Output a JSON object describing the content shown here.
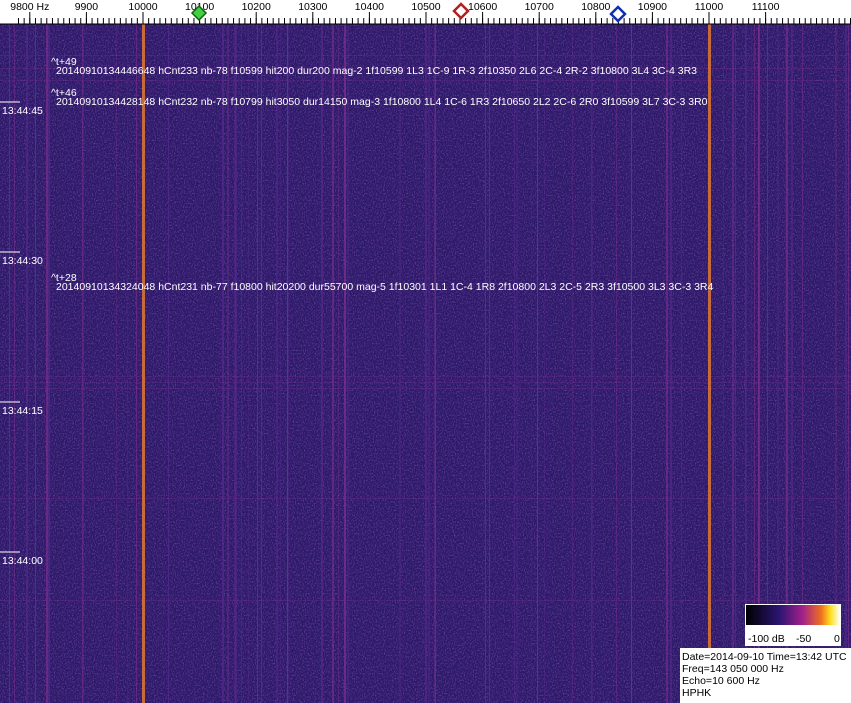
{
  "frequency_axis": {
    "ticks": [
      {
        "value": 9800,
        "label": "9800 Hz"
      },
      {
        "value": 9900,
        "label": "9900"
      },
      {
        "value": 10000,
        "label": "10000"
      },
      {
        "value": 10100,
        "label": "10100"
      },
      {
        "value": 10200,
        "label": "10200"
      },
      {
        "value": 10300,
        "label": "10300"
      },
      {
        "value": 10400,
        "label": "10400"
      },
      {
        "value": 10500,
        "label": "10500"
      },
      {
        "value": 10600,
        "label": "10600"
      },
      {
        "value": 10700,
        "label": "10700"
      },
      {
        "value": 10800,
        "label": "10800"
      },
      {
        "value": 10900,
        "label": "10900"
      },
      {
        "value": 11000,
        "label": "11000"
      },
      {
        "value": 11100,
        "label": "11100"
      }
    ]
  },
  "time_labels": [
    "13:44:45",
    "13:44:30",
    "13:44:15",
    "13:44:00"
  ],
  "detections": [
    {
      "offset": "^t+49",
      "text": "20140910134446648 hCnt233 nb-78 f10599 hit200 dur200 mag-2 1f10599 1L3 1C-9 1R-3 2f10350 2L6 2C-4 2R-2 3f10800 3L4 3C-4 3R3"
    },
    {
      "offset": "^t+46",
      "text": "20140910134428148 hCnt232 nb-78 f10799 hit3050 dur14150 mag-3 1f10800 1L4 1C-6 1R3 2f10650 2L2 2C-6 2R0 3f10599 3L7 3C-3 3R0"
    },
    {
      "offset": "^t+28",
      "text": "20140910134324048 hCnt231 nb-77 f10800 hit20200 dur55700 mag-5 1f10301 1L1 1C-4 1R8 2f10800 2L3 2C-5 2R3 3f10500 3L3 3C-3 3R4"
    }
  ],
  "colorbar": {
    "labels": [
      "-100 dB",
      "-50",
      "0"
    ]
  },
  "info": [
    "Date=2014-09-10 Time=13:42 UTC",
    "Freq=143 050 000 Hz",
    "Echo=10 600 Hz",
    "HPHK"
  ]
}
